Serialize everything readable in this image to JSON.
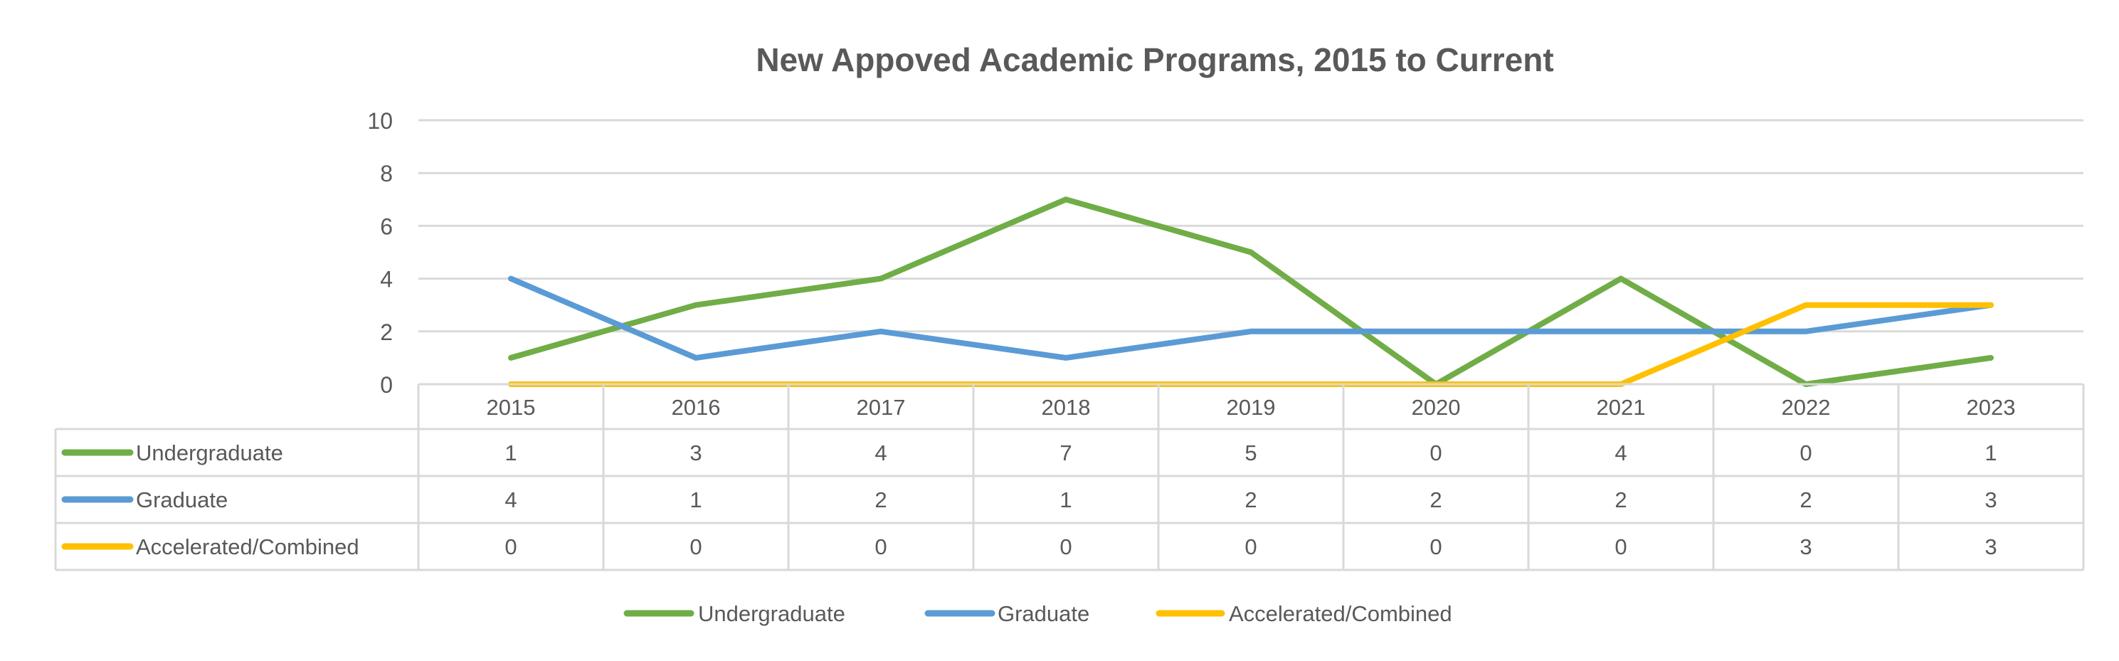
{
  "chart_data": {
    "type": "line",
    "title": "New Appoved Academic Programs, 2015 to Current",
    "categories": [
      "2015",
      "2016",
      "2017",
      "2018",
      "2019",
      "2020",
      "2021",
      "2022",
      "2023"
    ],
    "ylim": [
      0,
      10
    ],
    "yticks": [
      "0",
      "2",
      "4",
      "6",
      "8",
      "10"
    ],
    "grid": true,
    "legend_position": "bottom",
    "data_table": true,
    "series": [
      {
        "name": "Undergraduate",
        "color": "#70AD47",
        "values": [
          1,
          3,
          4,
          7,
          5,
          0,
          4,
          0,
          1
        ]
      },
      {
        "name": "Graduate",
        "color": "#5B9BD5",
        "values": [
          4,
          1,
          2,
          1,
          2,
          2,
          2,
          2,
          3
        ]
      },
      {
        "name": "Accelerated/Combined",
        "color": "#FFC000",
        "values": [
          0,
          0,
          0,
          0,
          0,
          0,
          0,
          3,
          3
        ]
      }
    ]
  }
}
